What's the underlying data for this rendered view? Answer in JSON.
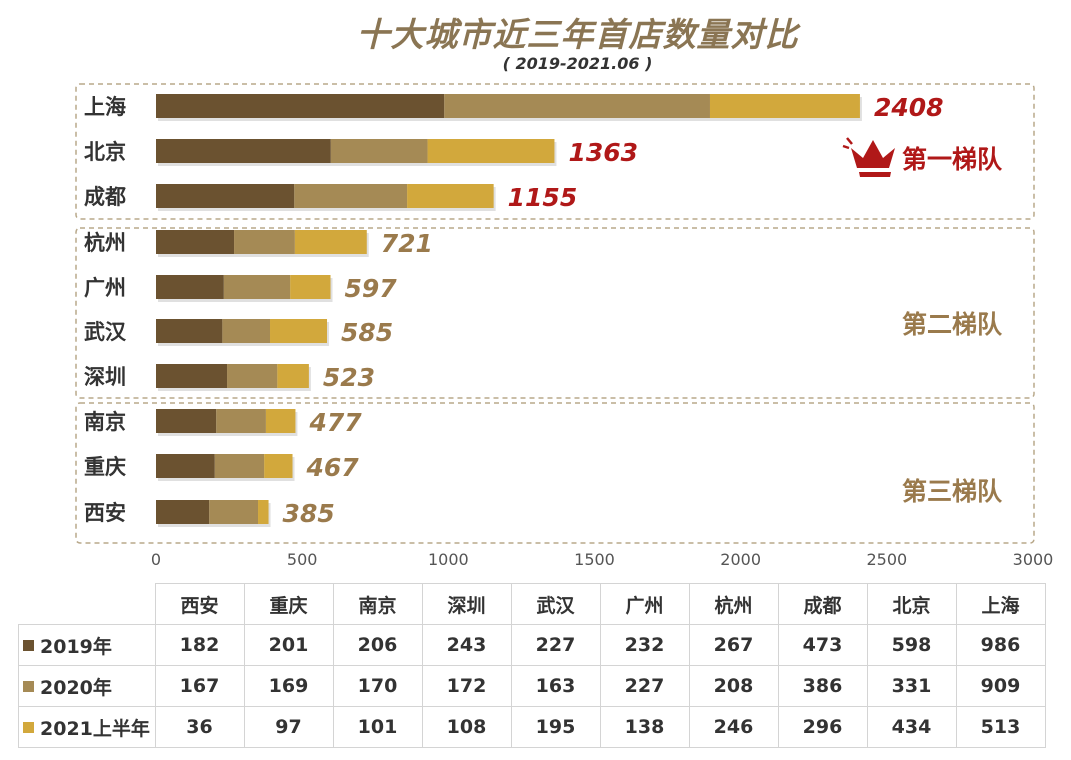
{
  "title": "十大城市近三年首店数量对比",
  "subtitle": "( 2019-2021.06 )",
  "tiers": [
    {
      "label": "第一梯队",
      "color": "#b01818",
      "icon": "crown-icon"
    },
    {
      "label": "第二梯队",
      "color": "#9a7a4c"
    },
    {
      "label": "第三梯队",
      "color": "#9a7a4c"
    }
  ],
  "chart_data": {
    "type": "bar",
    "orientation": "horizontal",
    "stacked": true,
    "categories": [
      "上海",
      "北京",
      "成都",
      "杭州",
      "广州",
      "武汉",
      "深圳",
      "南京",
      "重庆",
      "西安"
    ],
    "series": [
      {
        "name": "2019年",
        "color": "#6b5230",
        "values": [
          986,
          598,
          473,
          267,
          232,
          227,
          243,
          206,
          201,
          182
        ]
      },
      {
        "name": "2020年",
        "color": "#a58a55",
        "values": [
          909,
          331,
          386,
          208,
          227,
          163,
          172,
          170,
          169,
          167
        ]
      },
      {
        "name": "2021上半年",
        "color": "#d2a83c",
        "values": [
          513,
          434,
          296,
          246,
          138,
          195,
          108,
          101,
          97,
          36
        ]
      }
    ],
    "totals": [
      "2408",
      "1363",
      "1155",
      "721",
      "597",
      "585",
      "523",
      "477",
      "467",
      "385"
    ],
    "total_colors": [
      "#b01818",
      "#b01818",
      "#b01818",
      "#9a7a4c",
      "#9a7a4c",
      "#9a7a4c",
      "#9a7a4c",
      "#9a7a4c",
      "#9a7a4c",
      "#9a7a4c"
    ],
    "xlim": [
      0,
      3000
    ],
    "xticks": [
      "0",
      "500",
      "1000",
      "1500",
      "2000",
      "2500",
      "3000"
    ],
    "grid": false
  },
  "table": {
    "columns": [
      "西安",
      "重庆",
      "南京",
      "深圳",
      "武汉",
      "广州",
      "杭州",
      "成都",
      "北京",
      "上海"
    ],
    "rows": [
      {
        "label": "2019年",
        "color": "#6b5230",
        "values": [
          "182",
          "201",
          "206",
          "243",
          "227",
          "232",
          "267",
          "473",
          "598",
          "986"
        ]
      },
      {
        "label": "2020年",
        "color": "#a58a55",
        "values": [
          "167",
          "169",
          "170",
          "172",
          "163",
          "227",
          "208",
          "386",
          "331",
          "909"
        ]
      },
      {
        "label": "2021上半年",
        "color": "#d2a83c",
        "values": [
          "36",
          "97",
          "101",
          "108",
          "195",
          "138",
          "246",
          "296",
          "434",
          "513"
        ]
      }
    ]
  }
}
